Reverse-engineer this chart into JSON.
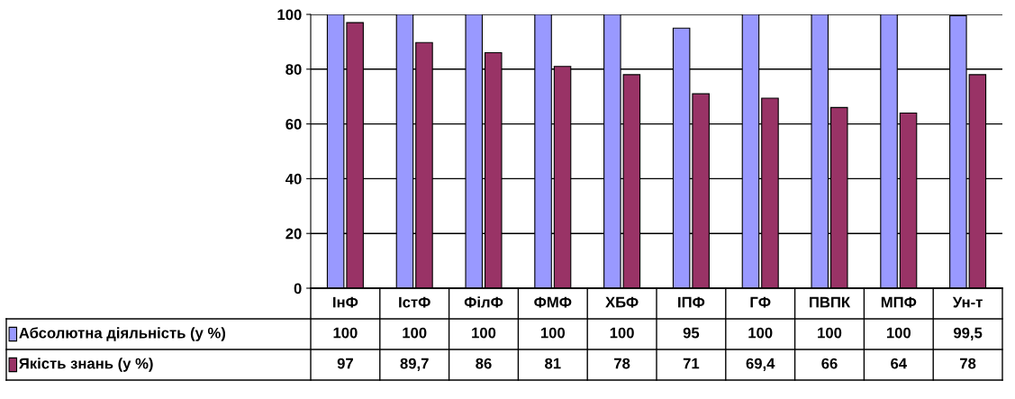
{
  "chart_data": {
    "type": "bar",
    "categories": [
      "ІнФ",
      "ІстФ",
      "ФілФ",
      "ФМФ",
      "ХБФ",
      "ІПФ",
      "ГФ",
      "ПВПК",
      "МПФ",
      "Ун-т"
    ],
    "series": [
      {
        "name": "Абсолютна діяльність (у %)",
        "color": "#9999ff",
        "values": [
          100,
          100,
          100,
          100,
          100,
          95,
          100,
          100,
          100,
          99.5
        ],
        "value_labels": [
          "100",
          "100",
          "100",
          "100",
          "100",
          "95",
          "100",
          "100",
          "100",
          "99,5"
        ]
      },
      {
        "name": "Якість знань (у %)",
        "color": "#993366",
        "values": [
          97,
          89.7,
          86,
          81,
          78,
          71,
          69.4,
          66,
          64,
          78
        ],
        "value_labels": [
          "97",
          "89,7",
          "86",
          "81",
          "78",
          "71",
          "69,4",
          "66",
          "64",
          "78"
        ]
      }
    ],
    "ylim": [
      0,
      100
    ],
    "yticks": [
      0,
      20,
      40,
      60,
      80,
      100
    ],
    "grid": "y",
    "legend": "bottom"
  }
}
